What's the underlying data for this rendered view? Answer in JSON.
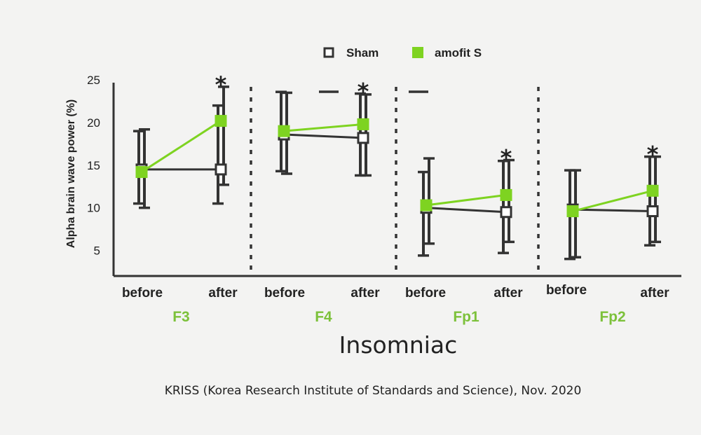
{
  "chart_data": {
    "type": "line",
    "title": "",
    "ylabel": "Alpha brain wave power (%)",
    "xlabel": "Insomniac",
    "ylim": [
      2,
      26
    ],
    "yticks": [
      5,
      10,
      15,
      20,
      25
    ],
    "time_labels": [
      "before",
      "after"
    ],
    "panels": [
      {
        "name": "F3",
        "series": [
          {
            "name": "Sham",
            "values": [
              14.5,
              14.5
            ],
            "err_lo": [
              4,
              4
            ],
            "err_hi": [
              4.5,
              7.5
            ]
          },
          {
            "name": "amofit S",
            "values": [
              14.2,
              20.2
            ],
            "err_lo": [
              4.2,
              7.5
            ],
            "err_hi": [
              5,
              4
            ]
          }
        ],
        "significant": [
          false,
          true
        ]
      },
      {
        "name": "F4",
        "series": [
          {
            "name": "Sham",
            "values": [
              18.6,
              18.2
            ],
            "err_lo": [
              4.3,
              4.4
            ],
            "err_hi": [
              5,
              5.2
            ]
          },
          {
            "name": "amofit S",
            "values": [
              19,
              19.8
            ],
            "err_lo": [
              5,
              6
            ],
            "err_hi": [
              4.5,
              3.5
            ]
          }
        ],
        "significant": [
          false,
          true
        ]
      },
      {
        "name": "Fp1",
        "series": [
          {
            "name": "Sham",
            "values": [
              10,
              9.5
            ],
            "err_lo": [
              5.6,
              4.8
            ],
            "err_hi": [
              4.2,
              6
            ]
          },
          {
            "name": "amofit S",
            "values": [
              10.3,
              11.5
            ],
            "err_lo": [
              4.5,
              5.5
            ],
            "err_hi": [
              5.5,
              4.1
            ]
          }
        ],
        "significant": [
          false,
          true
        ]
      },
      {
        "name": "Fp2",
        "series": [
          {
            "name": "Sham",
            "values": [
              9.8,
              9.6
            ],
            "err_lo": [
              5.8,
              4
            ],
            "err_hi": [
              4.6,
              6.4
            ]
          },
          {
            "name": "amofit S",
            "values": [
              9.6,
              12
            ],
            "err_lo": [
              5.4,
              6
            ],
            "err_hi": [
              4.8,
              4
            ]
          }
        ],
        "significant": [
          false,
          true
        ]
      }
    ],
    "legend": [
      {
        "name": "Sham",
        "marker": "open-square",
        "color": "#333333"
      },
      {
        "name": "amofit S",
        "marker": "filled-square",
        "color": "#7ed321"
      }
    ],
    "legend_position": "top",
    "significance_marker": "*",
    "source": "KRISS (Korea Research Institute of Standards and Science), Nov. 2020",
    "colors": {
      "sham": "#333333",
      "amofit": "#7ed321",
      "panel_label": "#7cc13a",
      "background": "#f3f3f2"
    }
  }
}
